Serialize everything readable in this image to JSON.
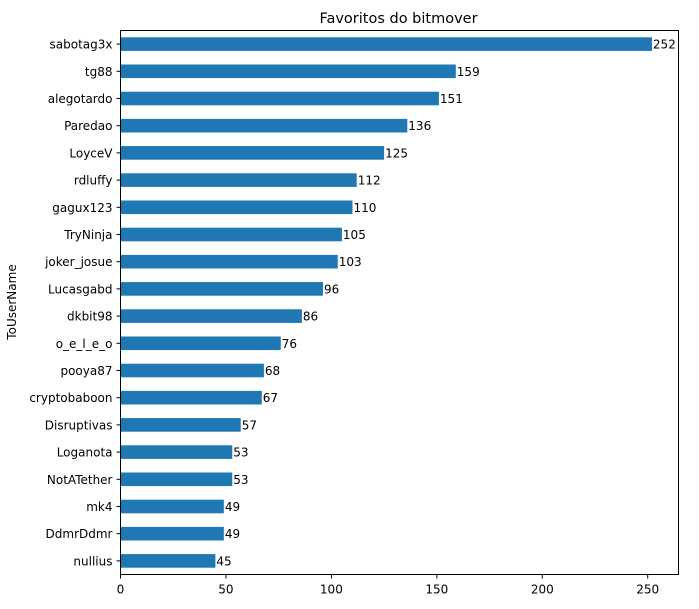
{
  "chart_data": {
    "type": "bar",
    "orientation": "horizontal",
    "title": "Favoritos do bitmover",
    "xlabel": "",
    "ylabel": "ToUserName",
    "categories": [
      "sabotag3x",
      "tg88",
      "alegotardo",
      "Paredao",
      "LoyceV",
      "rdluffy",
      "gagux123",
      "TryNinja",
      "joker_josue",
      "Lucasgabd",
      "dkbit98",
      "o_e_l_e_o",
      "pooya87",
      "cryptobaboon",
      "Disruptivas",
      "Loganota",
      "NotATether",
      "mk4",
      "DdmrDdmr",
      "nullius"
    ],
    "values": [
      252,
      159,
      151,
      136,
      125,
      112,
      110,
      105,
      103,
      96,
      86,
      76,
      68,
      67,
      57,
      53,
      53,
      49,
      49,
      45
    ],
    "xlim": [
      0,
      264.6
    ],
    "xticks": [
      0,
      50,
      100,
      150,
      200,
      250
    ],
    "bar_color": "#1f77b4",
    "grid": false,
    "data_labels": true,
    "legend": false
  }
}
